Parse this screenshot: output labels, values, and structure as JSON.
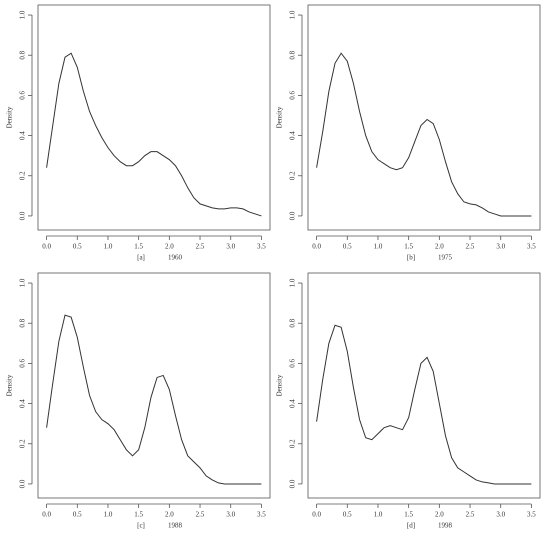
{
  "chart_data": [
    {
      "type": "line",
      "label": "[a]",
      "title": "1960",
      "ylabel": "Density",
      "color": "#333333",
      "x": [
        0,
        0.1,
        0.2,
        0.3,
        0.4,
        0.5,
        0.6,
        0.7,
        0.8,
        0.9,
        1.0,
        1.1,
        1.2,
        1.3,
        1.4,
        1.5,
        1.6,
        1.7,
        1.8,
        1.9,
        2.0,
        2.1,
        2.2,
        2.3,
        2.4,
        2.5,
        2.6,
        2.7,
        2.8,
        2.9,
        3.0,
        3.1,
        3.2,
        3.3,
        3.4,
        3.5
      ],
      "values": [
        0.24,
        0.45,
        0.66,
        0.79,
        0.81,
        0.74,
        0.62,
        0.52,
        0.45,
        0.39,
        0.34,
        0.3,
        0.27,
        0.25,
        0.25,
        0.27,
        0.3,
        0.32,
        0.32,
        0.3,
        0.28,
        0.25,
        0.2,
        0.14,
        0.09,
        0.06,
        0.05,
        0.04,
        0.035,
        0.035,
        0.04,
        0.04,
        0.035,
        0.02,
        0.01,
        0.0
      ],
      "xlim": [
        -0.14,
        3.64
      ],
      "ylim": [
        -0.07,
        1.05
      ],
      "xticks": [
        {
          "value": 0,
          "label": "0.0"
        },
        0.5,
        {
          "value": 1,
          "label": "1.0"
        },
        1.5,
        {
          "value": 2,
          "label": "2.0"
        },
        2.5,
        {
          "value": 3,
          "label": "3.0"
        },
        3.5
      ],
      "yticks": [
        {
          "value": 0,
          "label": "0.0"
        },
        0.2,
        0.4,
        0.6,
        0.8,
        {
          "value": 1,
          "label": "1.0"
        }
      ]
    },
    {
      "type": "line",
      "label": "[b]",
      "title": "1975",
      "ylabel": "Density",
      "color": "#333333",
      "x": [
        0,
        0.1,
        0.2,
        0.3,
        0.4,
        0.5,
        0.6,
        0.7,
        0.8,
        0.9,
        1.0,
        1.1,
        1.2,
        1.3,
        1.4,
        1.5,
        1.6,
        1.7,
        1.8,
        1.9,
        2.0,
        2.1,
        2.2,
        2.3,
        2.4,
        2.5,
        2.6,
        2.7,
        2.8,
        2.9,
        3.0,
        3.1,
        3.2,
        3.3,
        3.4,
        3.5
      ],
      "values": [
        0.24,
        0.42,
        0.62,
        0.76,
        0.81,
        0.77,
        0.66,
        0.52,
        0.4,
        0.32,
        0.28,
        0.26,
        0.24,
        0.23,
        0.24,
        0.29,
        0.37,
        0.45,
        0.48,
        0.46,
        0.38,
        0.27,
        0.17,
        0.11,
        0.07,
        0.06,
        0.055,
        0.04,
        0.02,
        0.01,
        0,
        0,
        0,
        0,
        0,
        0
      ],
      "xlim": [
        -0.14,
        3.64
      ],
      "ylim": [
        -0.07,
        1.05
      ],
      "xticks": [
        {
          "value": 0,
          "label": "0.0"
        },
        0.5,
        {
          "value": 1,
          "label": "1.0"
        },
        1.5,
        {
          "value": 2,
          "label": "2.0"
        },
        2.5,
        {
          "value": 3,
          "label": "3.0"
        },
        3.5
      ],
      "yticks": [
        {
          "value": 0,
          "label": "0.0"
        },
        0.2,
        0.4,
        0.6,
        0.8,
        {
          "value": 1,
          "label": "1.0"
        }
      ]
    },
    {
      "type": "line",
      "label": "[c]",
      "title": "1988",
      "ylabel": "Density",
      "color": "#333333",
      "x": [
        0,
        0.1,
        0.2,
        0.3,
        0.4,
        0.5,
        0.6,
        0.7,
        0.8,
        0.9,
        1.0,
        1.1,
        1.2,
        1.3,
        1.4,
        1.5,
        1.6,
        1.7,
        1.8,
        1.9,
        2.0,
        2.1,
        2.2,
        2.3,
        2.4,
        2.5,
        2.6,
        2.7,
        2.8,
        2.9,
        3.0,
        3.1,
        3.2,
        3.3,
        3.4,
        3.5
      ],
      "values": [
        0.28,
        0.5,
        0.71,
        0.84,
        0.83,
        0.73,
        0.58,
        0.44,
        0.36,
        0.32,
        0.3,
        0.27,
        0.22,
        0.17,
        0.14,
        0.17,
        0.28,
        0.43,
        0.53,
        0.54,
        0.47,
        0.34,
        0.22,
        0.14,
        0.11,
        0.08,
        0.04,
        0.02,
        0.005,
        0,
        0,
        0,
        0,
        0,
        0,
        0
      ],
      "xlim": [
        -0.14,
        3.64
      ],
      "ylim": [
        -0.07,
        1.05
      ],
      "xticks": [
        {
          "value": 0,
          "label": "0.0"
        },
        0.5,
        {
          "value": 1,
          "label": "1.0"
        },
        1.5,
        {
          "value": 2,
          "label": "2.0"
        },
        2.5,
        {
          "value": 3,
          "label": "3.0"
        },
        3.5
      ],
      "yticks": [
        {
          "value": 0,
          "label": "0.0"
        },
        0.2,
        0.4,
        0.6,
        0.8,
        {
          "value": 1,
          "label": "1.0"
        }
      ]
    },
    {
      "type": "line",
      "label": "[d]",
      "title": "1998",
      "ylabel": "Density",
      "color": "#333333",
      "x": [
        0,
        0.1,
        0.2,
        0.3,
        0.4,
        0.5,
        0.6,
        0.7,
        0.8,
        0.9,
        1.0,
        1.1,
        1.2,
        1.3,
        1.4,
        1.5,
        1.6,
        1.7,
        1.8,
        1.9,
        2.0,
        2.1,
        2.2,
        2.3,
        2.4,
        2.5,
        2.6,
        2.7,
        2.8,
        2.9,
        3.0,
        3.1,
        3.2,
        3.3,
        3.4,
        3.5
      ],
      "values": [
        0.31,
        0.52,
        0.7,
        0.79,
        0.78,
        0.66,
        0.48,
        0.32,
        0.23,
        0.22,
        0.25,
        0.28,
        0.29,
        0.28,
        0.27,
        0.33,
        0.47,
        0.6,
        0.63,
        0.56,
        0.4,
        0.24,
        0.13,
        0.08,
        0.06,
        0.04,
        0.02,
        0.01,
        0.005,
        0,
        0,
        0,
        0,
        0,
        0,
        0
      ],
      "xlim": [
        -0.14,
        3.64
      ],
      "ylim": [
        -0.07,
        1.05
      ],
      "xticks": [
        {
          "value": 0,
          "label": "0.0"
        },
        0.5,
        {
          "value": 1,
          "label": "1.0"
        },
        1.5,
        {
          "value": 2,
          "label": "2.0"
        },
        2.5,
        {
          "value": 3,
          "label": "3.0"
        },
        3.5
      ],
      "yticks": [
        {
          "value": 0,
          "label": "0.0"
        },
        0.2,
        0.4,
        0.6,
        0.8,
        {
          "value": 1,
          "label": "1.0"
        }
      ]
    }
  ]
}
